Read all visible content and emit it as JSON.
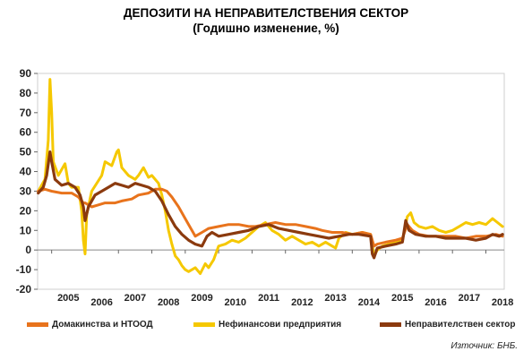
{
  "title": "ДЕПОЗИТИ НА НЕПРАВИТЕЛСТВЕНИЯ СЕКТОР",
  "subtitle": "(Годишно изменение, %)",
  "source": "Източник: БНБ.",
  "colors": {
    "households": "#E8731C",
    "enterprises": "#F5C800",
    "total": "#8B3A0E",
    "background": "#FFFFFF"
  },
  "chart_data": {
    "type": "line",
    "title": "ДЕПОЗИТИ НА НЕПРАВИТЕЛСТВЕНИЯ СЕКТОР",
    "subtitle": "(Годишно изменение, %)",
    "xlabel": "",
    "ylabel": "",
    "ylim": [
      -20,
      90
    ],
    "yticks": [
      -20,
      -10,
      0,
      10,
      20,
      30,
      40,
      50,
      60,
      70,
      80,
      90
    ],
    "xlim": [
      2004.58,
      2018.55
    ],
    "xtick_labels": [
      {
        "label": "2005",
        "x": 2005.5
      },
      {
        "label": "2006",
        "x": 2006.5
      },
      {
        "label": "2007",
        "x": 2007.5
      },
      {
        "label": "2008",
        "x": 2008.5
      },
      {
        "label": "2009",
        "x": 2009.5
      },
      {
        "label": "2010",
        "x": 2010.5
      },
      {
        "label": "2011",
        "x": 2011.5
      },
      {
        "label": "2012",
        "x": 2012.5
      },
      {
        "label": "2013",
        "x": 2013.5
      },
      {
        "label": "2014",
        "x": 2014.5
      },
      {
        "label": "2015",
        "x": 2015.5
      },
      {
        "label": "2016",
        "x": 2016.5
      },
      {
        "label": "2017",
        "x": 2017.5
      },
      {
        "label": "2018",
        "x": 2018.5
      }
    ],
    "grid": false,
    "legend_position": "bottom",
    "series": [
      {
        "name": "Домакинства и НТООД",
        "color": "#E8731C",
        "points": [
          [
            2004.6,
            30
          ],
          [
            2004.8,
            31
          ],
          [
            2005.0,
            30
          ],
          [
            2005.3,
            29
          ],
          [
            2005.6,
            29
          ],
          [
            2005.8,
            27
          ],
          [
            2005.95,
            24
          ],
          [
            2006.0,
            24
          ],
          [
            2006.2,
            22
          ],
          [
            2006.4,
            23
          ],
          [
            2006.6,
            24
          ],
          [
            2006.9,
            24
          ],
          [
            2007.1,
            25
          ],
          [
            2007.4,
            26
          ],
          [
            2007.6,
            28
          ],
          [
            2007.9,
            29
          ],
          [
            2008.1,
            31
          ],
          [
            2008.3,
            31
          ],
          [
            2008.45,
            30
          ],
          [
            2008.6,
            27
          ],
          [
            2008.8,
            22
          ],
          [
            2009.0,
            16
          ],
          [
            2009.2,
            10
          ],
          [
            2009.3,
            7
          ],
          [
            2009.5,
            9
          ],
          [
            2009.7,
            11
          ],
          [
            2010.0,
            12
          ],
          [
            2010.3,
            13
          ],
          [
            2010.6,
            13
          ],
          [
            2010.9,
            12
          ],
          [
            2011.1,
            12
          ],
          [
            2011.4,
            13
          ],
          [
            2011.7,
            14
          ],
          [
            2012.0,
            13
          ],
          [
            2012.3,
            13
          ],
          [
            2012.6,
            12
          ],
          [
            2012.9,
            11
          ],
          [
            2013.1,
            10
          ],
          [
            2013.4,
            9
          ],
          [
            2013.7,
            9
          ],
          [
            2014.0,
            8
          ],
          [
            2014.3,
            9
          ],
          [
            2014.55,
            8
          ],
          [
            2014.65,
            2
          ],
          [
            2014.75,
            3
          ],
          [
            2015.0,
            4
          ],
          [
            2015.3,
            5
          ],
          [
            2015.5,
            6
          ],
          [
            2015.65,
            13
          ],
          [
            2015.8,
            10
          ],
          [
            2016.0,
            8
          ],
          [
            2016.3,
            7
          ],
          [
            2016.6,
            7
          ],
          [
            2016.9,
            7
          ],
          [
            2017.1,
            7
          ],
          [
            2017.4,
            6
          ],
          [
            2017.7,
            7
          ],
          [
            2018.0,
            7
          ],
          [
            2018.3,
            8
          ],
          [
            2018.5,
            7
          ]
        ]
      },
      {
        "name": "Нефинансови предприятия",
        "color": "#F5C800",
        "points": [
          [
            2004.6,
            30
          ],
          [
            2004.8,
            36
          ],
          [
            2004.9,
            56
          ],
          [
            2004.95,
            87
          ],
          [
            2005.0,
            70
          ],
          [
            2005.05,
            45
          ],
          [
            2005.2,
            38
          ],
          [
            2005.4,
            44
          ],
          [
            2005.5,
            34
          ],
          [
            2005.6,
            32
          ],
          [
            2005.8,
            32
          ],
          [
            2005.9,
            20
          ],
          [
            2005.95,
            5
          ],
          [
            2006.0,
            -2
          ],
          [
            2006.05,
            18
          ],
          [
            2006.2,
            30
          ],
          [
            2006.5,
            38
          ],
          [
            2006.6,
            45
          ],
          [
            2006.8,
            43
          ],
          [
            2006.95,
            50
          ],
          [
            2007.0,
            51
          ],
          [
            2007.1,
            42
          ],
          [
            2007.3,
            38
          ],
          [
            2007.5,
            36
          ],
          [
            2007.6,
            38
          ],
          [
            2007.75,
            42
          ],
          [
            2007.9,
            37
          ],
          [
            2008.0,
            38
          ],
          [
            2008.2,
            34
          ],
          [
            2008.3,
            28
          ],
          [
            2008.4,
            20
          ],
          [
            2008.5,
            10
          ],
          [
            2008.6,
            3
          ],
          [
            2008.7,
            -3
          ],
          [
            2008.8,
            -5
          ],
          [
            2008.9,
            -8
          ],
          [
            2009.0,
            -10
          ],
          [
            2009.1,
            -11
          ],
          [
            2009.3,
            -9
          ],
          [
            2009.45,
            -12
          ],
          [
            2009.6,
            -7
          ],
          [
            2009.7,
            -9
          ],
          [
            2009.85,
            -5
          ],
          [
            2010.0,
            2
          ],
          [
            2010.2,
            3
          ],
          [
            2010.4,
            5
          ],
          [
            2010.6,
            4
          ],
          [
            2010.8,
            6
          ],
          [
            2011.0,
            9
          ],
          [
            2011.2,
            12
          ],
          [
            2011.4,
            14
          ],
          [
            2011.6,
            10
          ],
          [
            2011.8,
            8
          ],
          [
            2012.0,
            5
          ],
          [
            2012.2,
            7
          ],
          [
            2012.4,
            5
          ],
          [
            2012.6,
            3
          ],
          [
            2012.8,
            4
          ],
          [
            2013.0,
            2
          ],
          [
            2013.2,
            4
          ],
          [
            2013.4,
            2
          ],
          [
            2013.5,
            1
          ],
          [
            2013.6,
            6
          ],
          [
            2013.8,
            9
          ],
          [
            2014.0,
            8
          ],
          [
            2014.3,
            9
          ],
          [
            2014.55,
            8
          ],
          [
            2014.65,
            -3
          ],
          [
            2014.75,
            0
          ],
          [
            2014.9,
            2
          ],
          [
            2015.1,
            3
          ],
          [
            2015.3,
            4
          ],
          [
            2015.5,
            5
          ],
          [
            2015.65,
            17
          ],
          [
            2015.75,
            19
          ],
          [
            2015.85,
            14
          ],
          [
            2016.0,
            12
          ],
          [
            2016.2,
            11
          ],
          [
            2016.4,
            12
          ],
          [
            2016.6,
            10
          ],
          [
            2016.8,
            9
          ],
          [
            2017.0,
            10
          ],
          [
            2017.2,
            12
          ],
          [
            2017.4,
            14
          ],
          [
            2017.6,
            13
          ],
          [
            2017.8,
            14
          ],
          [
            2018.0,
            13
          ],
          [
            2018.2,
            16
          ],
          [
            2018.35,
            14
          ],
          [
            2018.5,
            12
          ]
        ]
      },
      {
        "name": "Неправителствен сектор",
        "color": "#8B3A0E",
        "points": [
          [
            2004.6,
            29
          ],
          [
            2004.75,
            32
          ],
          [
            2004.85,
            38
          ],
          [
            2004.95,
            50
          ],
          [
            2005.0,
            45
          ],
          [
            2005.1,
            36
          ],
          [
            2005.3,
            33
          ],
          [
            2005.5,
            34
          ],
          [
            2005.7,
            32
          ],
          [
            2005.85,
            28
          ],
          [
            2005.95,
            22
          ],
          [
            2006.0,
            15
          ],
          [
            2006.1,
            22
          ],
          [
            2006.3,
            28
          ],
          [
            2006.5,
            30
          ],
          [
            2006.7,
            32
          ],
          [
            2006.9,
            34
          ],
          [
            2007.1,
            33
          ],
          [
            2007.3,
            32
          ],
          [
            2007.5,
            34
          ],
          [
            2007.7,
            33
          ],
          [
            2007.9,
            32
          ],
          [
            2008.1,
            30
          ],
          [
            2008.3,
            25
          ],
          [
            2008.5,
            18
          ],
          [
            2008.7,
            12
          ],
          [
            2008.9,
            8
          ],
          [
            2009.1,
            5
          ],
          [
            2009.3,
            3
          ],
          [
            2009.5,
            2
          ],
          [
            2009.65,
            7
          ],
          [
            2009.8,
            9
          ],
          [
            2010.0,
            7
          ],
          [
            2010.3,
            8
          ],
          [
            2010.6,
            9
          ],
          [
            2010.9,
            10
          ],
          [
            2011.2,
            12
          ],
          [
            2011.5,
            13
          ],
          [
            2011.8,
            11
          ],
          [
            2012.1,
            10
          ],
          [
            2012.4,
            9
          ],
          [
            2012.7,
            8
          ],
          [
            2013.0,
            7
          ],
          [
            2013.3,
            6
          ],
          [
            2013.6,
            7
          ],
          [
            2013.9,
            8
          ],
          [
            2014.2,
            8
          ],
          [
            2014.55,
            7
          ],
          [
            2014.6,
            -2
          ],
          [
            2014.65,
            -4
          ],
          [
            2014.75,
            1
          ],
          [
            2015.0,
            2
          ],
          [
            2015.3,
            3
          ],
          [
            2015.5,
            4
          ],
          [
            2015.6,
            15
          ],
          [
            2015.7,
            10
          ],
          [
            2015.9,
            8
          ],
          [
            2016.2,
            7
          ],
          [
            2016.5,
            7
          ],
          [
            2016.8,
            6
          ],
          [
            2017.1,
            6
          ],
          [
            2017.4,
            6
          ],
          [
            2017.7,
            5
          ],
          [
            2018.0,
            6
          ],
          [
            2018.2,
            8
          ],
          [
            2018.4,
            7
          ],
          [
            2018.5,
            8
          ]
        ]
      }
    ]
  }
}
